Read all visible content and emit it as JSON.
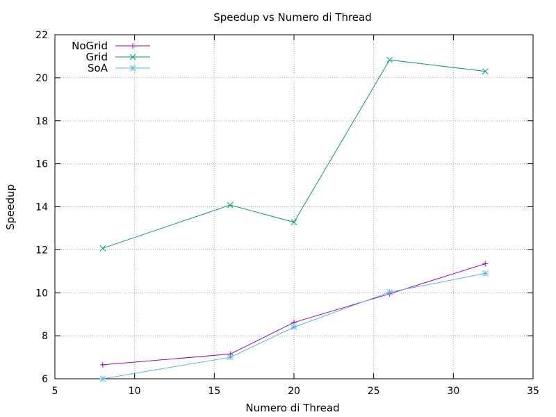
{
  "chart_data": {
    "type": "line",
    "title": "Speedup vs Numero di Thread",
    "xlabel": "Numero di Thread",
    "ylabel": "Speedup",
    "xlim": [
      5,
      35
    ],
    "ylim": [
      6,
      22
    ],
    "xticks": [
      5,
      10,
      15,
      20,
      25,
      30,
      35
    ],
    "yticks": [
      6,
      8,
      10,
      12,
      14,
      16,
      18,
      20,
      22
    ],
    "grid": true,
    "legend_position": "top-left",
    "x": [
      8,
      16,
      20,
      26,
      32
    ],
    "series": [
      {
        "name": "NoGrid",
        "marker": "plus",
        "color": "#9400d3",
        "values": [
          6.65,
          7.15,
          8.62,
          9.95,
          11.35
        ]
      },
      {
        "name": "Grid",
        "marker": "cross",
        "color": "#009e73",
        "values": [
          12.07,
          14.08,
          13.28,
          20.83,
          20.3
        ]
      },
      {
        "name": "SoA",
        "marker": "star",
        "color": "#56b4e9",
        "values": [
          6.0,
          7.0,
          8.4,
          10.03,
          10.9
        ]
      }
    ]
  }
}
